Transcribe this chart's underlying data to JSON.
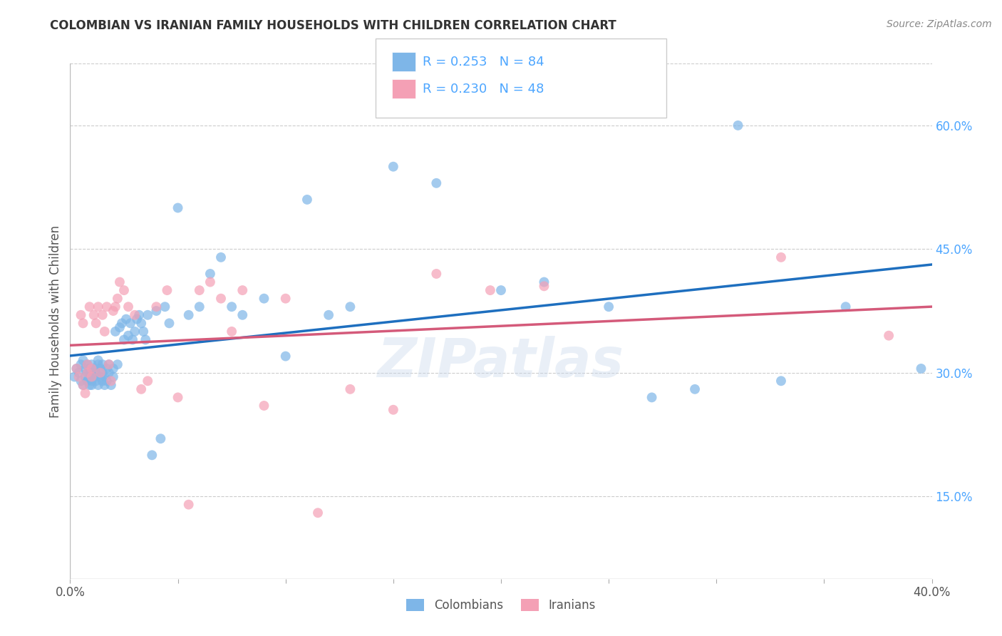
{
  "title": "COLOMBIAN VS IRANIAN FAMILY HOUSEHOLDS WITH CHILDREN CORRELATION CHART",
  "source": "Source: ZipAtlas.com",
  "ylabel": "Family Households with Children",
  "xlim": [
    0.0,
    0.4
  ],
  "ylim": [
    0.05,
    0.675
  ],
  "right_yticks": [
    0.15,
    0.3,
    0.45,
    0.6
  ],
  "right_yticklabels": [
    "15.0%",
    "30.0%",
    "45.0%",
    "60.0%"
  ],
  "colombian_color": "#7EB6E8",
  "iranian_color": "#F4A0B5",
  "colombian_line_color": "#1E6FBF",
  "iranian_line_color": "#D45A7A",
  "R_colombian": 0.253,
  "N_colombian": 84,
  "R_iranian": 0.23,
  "N_iranian": 48,
  "legend_label_colombians": "Colombians",
  "legend_label_iranians": "Iranians",
  "watermark": "ZIPatlas",
  "background_color": "#FFFFFF",
  "grid_color": "#CCCCCC",
  "colombian_x": [
    0.002,
    0.003,
    0.004,
    0.005,
    0.005,
    0.006,
    0.006,
    0.007,
    0.007,
    0.008,
    0.008,
    0.008,
    0.009,
    0.009,
    0.009,
    0.01,
    0.01,
    0.01,
    0.01,
    0.011,
    0.011,
    0.012,
    0.012,
    0.013,
    0.013,
    0.013,
    0.014,
    0.014,
    0.015,
    0.015,
    0.015,
    0.016,
    0.016,
    0.017,
    0.017,
    0.018,
    0.018,
    0.019,
    0.02,
    0.02,
    0.021,
    0.022,
    0.023,
    0.024,
    0.025,
    0.026,
    0.027,
    0.028,
    0.029,
    0.03,
    0.031,
    0.032,
    0.033,
    0.034,
    0.035,
    0.036,
    0.038,
    0.04,
    0.042,
    0.044,
    0.046,
    0.05,
    0.055,
    0.06,
    0.065,
    0.07,
    0.075,
    0.08,
    0.09,
    0.1,
    0.11,
    0.12,
    0.13,
    0.15,
    0.17,
    0.2,
    0.22,
    0.25,
    0.27,
    0.29,
    0.31,
    0.33,
    0.36,
    0.395
  ],
  "colombian_y": [
    0.295,
    0.305,
    0.3,
    0.29,
    0.31,
    0.285,
    0.315,
    0.295,
    0.305,
    0.29,
    0.3,
    0.31,
    0.285,
    0.295,
    0.305,
    0.29,
    0.3,
    0.31,
    0.285,
    0.295,
    0.305,
    0.3,
    0.29,
    0.31,
    0.285,
    0.315,
    0.295,
    0.305,
    0.29,
    0.3,
    0.31,
    0.285,
    0.295,
    0.305,
    0.29,
    0.3,
    0.31,
    0.285,
    0.295,
    0.305,
    0.35,
    0.31,
    0.355,
    0.36,
    0.34,
    0.365,
    0.345,
    0.36,
    0.34,
    0.35,
    0.365,
    0.37,
    0.36,
    0.35,
    0.34,
    0.37,
    0.2,
    0.375,
    0.22,
    0.38,
    0.36,
    0.5,
    0.37,
    0.38,
    0.42,
    0.44,
    0.38,
    0.37,
    0.39,
    0.32,
    0.51,
    0.37,
    0.38,
    0.55,
    0.53,
    0.4,
    0.41,
    0.38,
    0.27,
    0.28,
    0.6,
    0.29,
    0.38,
    0.305
  ],
  "iranian_x": [
    0.003,
    0.004,
    0.005,
    0.006,
    0.006,
    0.007,
    0.008,
    0.008,
    0.009,
    0.01,
    0.01,
    0.011,
    0.012,
    0.013,
    0.014,
    0.015,
    0.016,
    0.017,
    0.018,
    0.019,
    0.02,
    0.021,
    0.022,
    0.023,
    0.025,
    0.027,
    0.03,
    0.033,
    0.036,
    0.04,
    0.045,
    0.05,
    0.055,
    0.06,
    0.065,
    0.07,
    0.075,
    0.08,
    0.09,
    0.1,
    0.115,
    0.13,
    0.15,
    0.17,
    0.195,
    0.22,
    0.33,
    0.38
  ],
  "iranian_y": [
    0.305,
    0.295,
    0.37,
    0.36,
    0.285,
    0.275,
    0.31,
    0.3,
    0.38,
    0.305,
    0.295,
    0.37,
    0.36,
    0.38,
    0.3,
    0.37,
    0.35,
    0.38,
    0.31,
    0.29,
    0.375,
    0.38,
    0.39,
    0.41,
    0.4,
    0.38,
    0.37,
    0.28,
    0.29,
    0.38,
    0.4,
    0.27,
    0.14,
    0.4,
    0.41,
    0.39,
    0.35,
    0.4,
    0.26,
    0.39,
    0.13,
    0.28,
    0.255,
    0.42,
    0.4,
    0.405,
    0.44,
    0.345
  ]
}
